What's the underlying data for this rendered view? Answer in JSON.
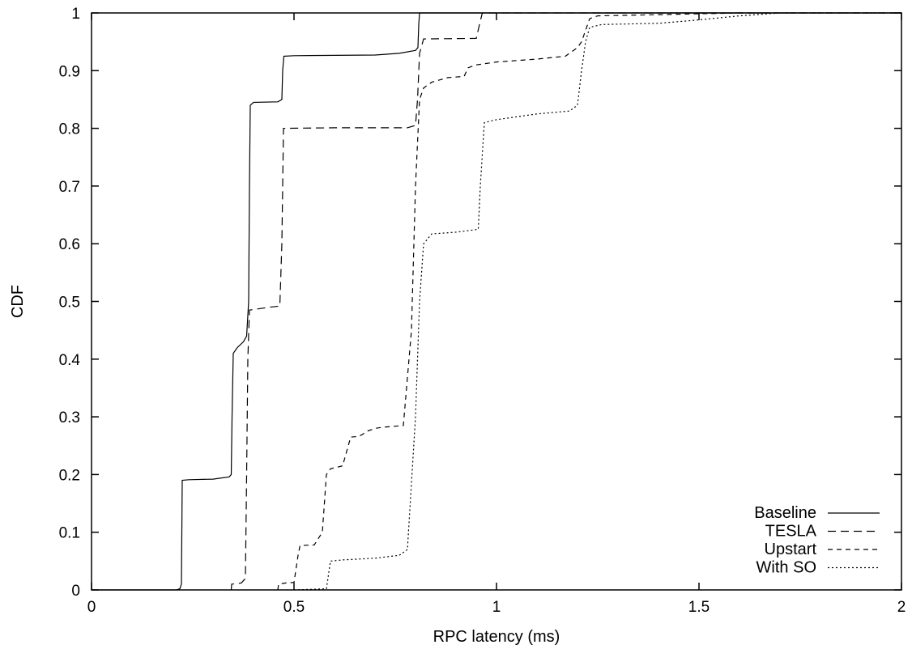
{
  "chart_data": {
    "type": "line",
    "title": "",
    "xlabel": "RPC latency (ms)",
    "ylabel": "CDF",
    "xlim": [
      0,
      2
    ],
    "ylim": [
      0,
      1
    ],
    "grid": false,
    "legend_position": "bottom-right",
    "x_ticks": [
      {
        "value": 0,
        "label": "0"
      },
      {
        "value": 0.5,
        "label": "0.5"
      },
      {
        "value": 1,
        "label": "1"
      },
      {
        "value": 1.5,
        "label": "1.5"
      },
      {
        "value": 2,
        "label": "2"
      }
    ],
    "y_ticks": [
      {
        "value": 0,
        "label": "0"
      },
      {
        "value": 0.1,
        "label": "0.1"
      },
      {
        "value": 0.2,
        "label": "0.2"
      },
      {
        "value": 0.3,
        "label": "0.3"
      },
      {
        "value": 0.4,
        "label": "0.4"
      },
      {
        "value": 0.5,
        "label": "0.5"
      },
      {
        "value": 0.6,
        "label": "0.6"
      },
      {
        "value": 0.7,
        "label": "0.7"
      },
      {
        "value": 0.8,
        "label": "0.8"
      },
      {
        "value": 0.9,
        "label": "0.9"
      },
      {
        "value": 1,
        "label": "1"
      }
    ],
    "series": [
      {
        "name": "Baseline",
        "dash": "solid",
        "points": [
          [
            0.0,
            0.0
          ],
          [
            0.21,
            0.0
          ],
          [
            0.218,
            0.002
          ],
          [
            0.222,
            0.01
          ],
          [
            0.224,
            0.19
          ],
          [
            0.24,
            0.191
          ],
          [
            0.3,
            0.192
          ],
          [
            0.34,
            0.196
          ],
          [
            0.345,
            0.2
          ],
          [
            0.347,
            0.3
          ],
          [
            0.35,
            0.41
          ],
          [
            0.36,
            0.42
          ],
          [
            0.375,
            0.43
          ],
          [
            0.383,
            0.44
          ],
          [
            0.388,
            0.5
          ],
          [
            0.39,
            0.7
          ],
          [
            0.392,
            0.84
          ],
          [
            0.4,
            0.845
          ],
          [
            0.46,
            0.846
          ],
          [
            0.47,
            0.85
          ],
          [
            0.472,
            0.9
          ],
          [
            0.475,
            0.925
          ],
          [
            0.5,
            0.926
          ],
          [
            0.7,
            0.927
          ],
          [
            0.76,
            0.93
          ],
          [
            0.8,
            0.935
          ],
          [
            0.806,
            0.94
          ],
          [
            0.808,
            0.98
          ],
          [
            0.81,
            1.0
          ],
          [
            2.0,
            1.0
          ]
        ]
      },
      {
        "name": "TESLA",
        "dash": "10 6",
        "points": [
          [
            0.345,
            0.0
          ],
          [
            0.346,
            0.01
          ],
          [
            0.37,
            0.012
          ],
          [
            0.38,
            0.02
          ],
          [
            0.383,
            0.2
          ],
          [
            0.386,
            0.4
          ],
          [
            0.39,
            0.485
          ],
          [
            0.41,
            0.487
          ],
          [
            0.44,
            0.49
          ],
          [
            0.465,
            0.492
          ],
          [
            0.47,
            0.6
          ],
          [
            0.474,
            0.8
          ],
          [
            0.6,
            0.801
          ],
          [
            0.78,
            0.801
          ],
          [
            0.8,
            0.805
          ],
          [
            0.805,
            0.85
          ],
          [
            0.81,
            0.93
          ],
          [
            0.82,
            0.955
          ],
          [
            0.95,
            0.956
          ],
          [
            0.958,
            0.98
          ],
          [
            0.965,
            1.0
          ],
          [
            2.0,
            1.0
          ]
        ]
      },
      {
        "name": "Upstart",
        "dash": "6 5",
        "points": [
          [
            0.46,
            0.0
          ],
          [
            0.462,
            0.01
          ],
          [
            0.48,
            0.012
          ],
          [
            0.5,
            0.013
          ],
          [
            0.51,
            0.06
          ],
          [
            0.515,
            0.077
          ],
          [
            0.55,
            0.078
          ],
          [
            0.57,
            0.1
          ],
          [
            0.58,
            0.2
          ],
          [
            0.59,
            0.21
          ],
          [
            0.62,
            0.215
          ],
          [
            0.63,
            0.24
          ],
          [
            0.64,
            0.265
          ],
          [
            0.66,
            0.266
          ],
          [
            0.67,
            0.27
          ],
          [
            0.68,
            0.275
          ],
          [
            0.7,
            0.28
          ],
          [
            0.72,
            0.282
          ],
          [
            0.77,
            0.285
          ],
          [
            0.79,
            0.45
          ],
          [
            0.8,
            0.7
          ],
          [
            0.81,
            0.85
          ],
          [
            0.82,
            0.87
          ],
          [
            0.84,
            0.88
          ],
          [
            0.88,
            0.888
          ],
          [
            0.92,
            0.89
          ],
          [
            0.93,
            0.905
          ],
          [
            0.95,
            0.91
          ],
          [
            1.0,
            0.915
          ],
          [
            1.1,
            0.92
          ],
          [
            1.17,
            0.925
          ],
          [
            1.2,
            0.94
          ],
          [
            1.21,
            0.95
          ],
          [
            1.22,
            0.97
          ],
          [
            1.23,
            0.99
          ],
          [
            1.25,
            0.995
          ],
          [
            1.4,
            0.997
          ],
          [
            1.6,
            1.0
          ],
          [
            2.0,
            1.0
          ]
        ]
      },
      {
        "name": "With SO",
        "dash": "2 3",
        "points": [
          [
            0.5,
            0.0
          ],
          [
            0.58,
            0.002
          ],
          [
            0.59,
            0.05
          ],
          [
            0.62,
            0.052
          ],
          [
            0.7,
            0.055
          ],
          [
            0.76,
            0.06
          ],
          [
            0.78,
            0.07
          ],
          [
            0.8,
            0.3
          ],
          [
            0.81,
            0.5
          ],
          [
            0.82,
            0.6
          ],
          [
            0.84,
            0.617
          ],
          [
            0.9,
            0.62
          ],
          [
            0.955,
            0.625
          ],
          [
            0.96,
            0.7
          ],
          [
            0.97,
            0.81
          ],
          [
            1.0,
            0.815
          ],
          [
            1.05,
            0.82
          ],
          [
            1.1,
            0.825
          ],
          [
            1.18,
            0.83
          ],
          [
            1.2,
            0.84
          ],
          [
            1.21,
            0.9
          ],
          [
            1.22,
            0.95
          ],
          [
            1.23,
            0.975
          ],
          [
            1.26,
            0.98
          ],
          [
            1.4,
            0.982
          ],
          [
            1.5,
            0.988
          ],
          [
            1.6,
            0.995
          ],
          [
            1.7,
            1.0
          ],
          [
            2.0,
            1.0
          ]
        ]
      }
    ]
  }
}
